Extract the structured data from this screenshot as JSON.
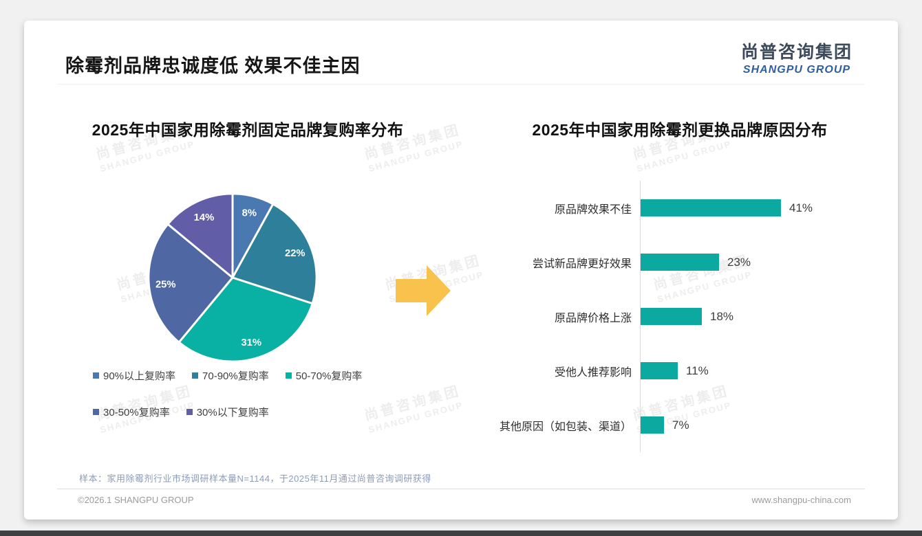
{
  "page": {
    "title": "除霉剂品牌忠诚度低 效果不佳主因",
    "logo": {
      "cn": "尚普咨询集团",
      "en": "SHANGPU GROUP"
    },
    "watermark": {
      "cn": "尚普咨询集团",
      "en": "SHANGPU GROUP"
    },
    "footer": {
      "note": "样本：家用除霉剂行业市场调研样本量N=1144，于2025年11月通过尚普咨询调研获得",
      "copyright": "©2026.1 SHANGPU GROUP",
      "website": "www.shangpu-china.com"
    }
  },
  "colors": {
    "bar_teal": "#0ba9a0",
    "arrow_yellow": "#f8c24d",
    "logo_blue": "#2d5f9b",
    "logo_dark": "#3d4a5c"
  },
  "chart_data": [
    {
      "type": "pie",
      "title": "2025年中国家用除霉剂固定品牌复购率分布",
      "categories": [
        "90%以上复购率",
        "70-90%复购率",
        "50-70%复购率",
        "30-50%复购率",
        "30%以下复购率"
      ],
      "values": [
        8,
        22,
        31,
        25,
        14
      ],
      "labels": [
        "8%",
        "22%",
        "31%",
        "25%",
        "14%"
      ],
      "unit": "%",
      "colors": [
        "#4a79b2",
        "#2e7f99",
        "#09b0a4",
        "#4f67a2",
        "#615da6"
      ],
      "start_angle_deg": 0,
      "clockwise": true,
      "legend_position": "bottom"
    },
    {
      "type": "bar",
      "title": "2025年中国家用除霉剂更换品牌原因分布",
      "orientation": "horizontal",
      "categories": [
        "原品牌效果不佳",
        "尝试新品牌更好效果",
        "原品牌价格上涨",
        "受他人推荐影响",
        "其他原因（如包装、渠道）"
      ],
      "values": [
        41,
        23,
        18,
        11,
        7
      ],
      "labels": [
        "41%",
        "23%",
        "18%",
        "11%",
        "7%"
      ],
      "unit": "%",
      "bar_color": "#0ba9a0",
      "xlim": [
        0,
        45
      ],
      "grid": false
    }
  ]
}
